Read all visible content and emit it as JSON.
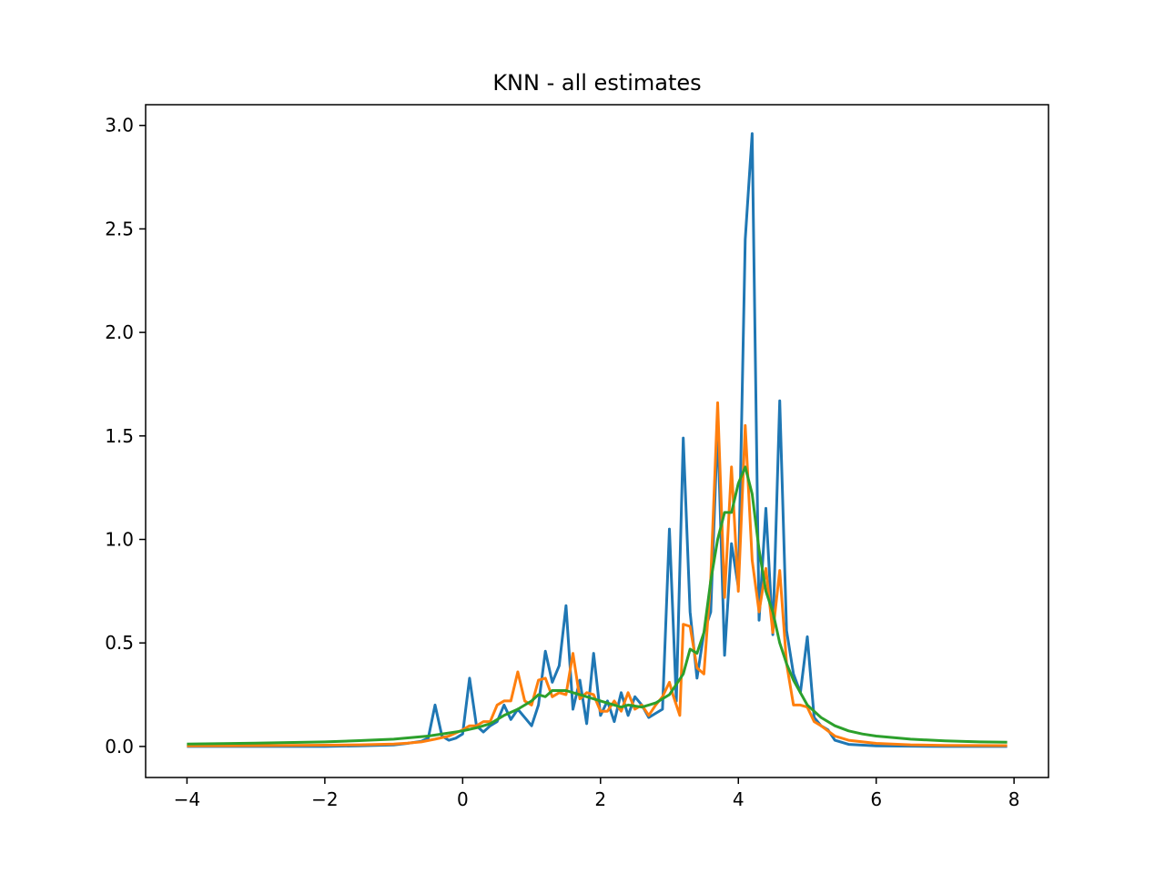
{
  "chart_data": {
    "type": "line",
    "title": "KNN - all estimates",
    "xlabel": "",
    "ylabel": "",
    "xlim": [
      -4.6,
      8.5
    ],
    "ylim": [
      -0.15,
      3.1
    ],
    "xticks": [
      -4,
      -2,
      0,
      2,
      4,
      6,
      8
    ],
    "xtick_labels": [
      "−4",
      "−2",
      "0",
      "2",
      "4",
      "6",
      "8"
    ],
    "yticks": [
      0.0,
      0.5,
      1.0,
      1.5,
      2.0,
      2.5,
      3.0
    ],
    "ytick_labels": [
      "0.0",
      "0.5",
      "1.0",
      "1.5",
      "2.0",
      "2.5",
      "3.0"
    ],
    "grid": false,
    "legend": "none",
    "series": [
      {
        "color": "#1f77b4",
        "stroke_width": 3,
        "points": [
          [
            -4.0,
            0.0
          ],
          [
            -3.0,
            0.0
          ],
          [
            -2.0,
            0.0
          ],
          [
            -1.5,
            0.003
          ],
          [
            -1.0,
            0.007
          ],
          [
            -0.8,
            0.015
          ],
          [
            -0.6,
            0.025
          ],
          [
            -0.5,
            0.04
          ],
          [
            -0.4,
            0.2
          ],
          [
            -0.3,
            0.05
          ],
          [
            -0.2,
            0.03
          ],
          [
            -0.1,
            0.04
          ],
          [
            0.0,
            0.06
          ],
          [
            0.1,
            0.33
          ],
          [
            0.2,
            0.1
          ],
          [
            0.3,
            0.07
          ],
          [
            0.4,
            0.1
          ],
          [
            0.5,
            0.12
          ],
          [
            0.6,
            0.2
          ],
          [
            0.7,
            0.13
          ],
          [
            0.8,
            0.18
          ],
          [
            0.9,
            0.14
          ],
          [
            1.0,
            0.1
          ],
          [
            1.1,
            0.2
          ],
          [
            1.2,
            0.46
          ],
          [
            1.3,
            0.31
          ],
          [
            1.4,
            0.39
          ],
          [
            1.5,
            0.68
          ],
          [
            1.6,
            0.18
          ],
          [
            1.7,
            0.32
          ],
          [
            1.8,
            0.11
          ],
          [
            1.9,
            0.45
          ],
          [
            2.0,
            0.15
          ],
          [
            2.1,
            0.22
          ],
          [
            2.2,
            0.12
          ],
          [
            2.3,
            0.26
          ],
          [
            2.4,
            0.15
          ],
          [
            2.5,
            0.24
          ],
          [
            2.6,
            0.2
          ],
          [
            2.7,
            0.14
          ],
          [
            2.8,
            0.16
          ],
          [
            2.9,
            0.18
          ],
          [
            3.0,
            1.05
          ],
          [
            3.1,
            0.22
          ],
          [
            3.2,
            1.49
          ],
          [
            3.3,
            0.65
          ],
          [
            3.4,
            0.33
          ],
          [
            3.5,
            0.55
          ],
          [
            3.6,
            0.65
          ],
          [
            3.7,
            1.55
          ],
          [
            3.8,
            0.44
          ],
          [
            3.9,
            0.98
          ],
          [
            4.0,
            0.77
          ],
          [
            4.1,
            2.45
          ],
          [
            4.2,
            2.96
          ],
          [
            4.3,
            0.61
          ],
          [
            4.4,
            1.15
          ],
          [
            4.5,
            0.54
          ],
          [
            4.6,
            1.67
          ],
          [
            4.7,
            0.56
          ],
          [
            4.8,
            0.35
          ],
          [
            4.9,
            0.26
          ],
          [
            5.0,
            0.53
          ],
          [
            5.1,
            0.14
          ],
          [
            5.2,
            0.1
          ],
          [
            5.3,
            0.08
          ],
          [
            5.4,
            0.03
          ],
          [
            5.6,
            0.01
          ],
          [
            6.0,
            0.003
          ],
          [
            7.0,
            0.0
          ],
          [
            7.9,
            0.0
          ]
        ]
      },
      {
        "color": "#ff7f0e",
        "stroke_width": 3,
        "points": [
          [
            -4.0,
            0.003
          ],
          [
            -3.0,
            0.004
          ],
          [
            -2.0,
            0.006
          ],
          [
            -1.5,
            0.008
          ],
          [
            -1.0,
            0.012
          ],
          [
            -0.8,
            0.016
          ],
          [
            -0.6,
            0.022
          ],
          [
            -0.4,
            0.035
          ],
          [
            -0.2,
            0.05
          ],
          [
            0.0,
            0.08
          ],
          [
            0.1,
            0.1
          ],
          [
            0.2,
            0.1
          ],
          [
            0.3,
            0.12
          ],
          [
            0.4,
            0.12
          ],
          [
            0.5,
            0.2
          ],
          [
            0.6,
            0.22
          ],
          [
            0.7,
            0.22
          ],
          [
            0.8,
            0.36
          ],
          [
            0.9,
            0.22
          ],
          [
            1.0,
            0.2
          ],
          [
            1.1,
            0.32
          ],
          [
            1.2,
            0.33
          ],
          [
            1.3,
            0.24
          ],
          [
            1.4,
            0.26
          ],
          [
            1.5,
            0.25
          ],
          [
            1.6,
            0.45
          ],
          [
            1.7,
            0.23
          ],
          [
            1.8,
            0.26
          ],
          [
            1.9,
            0.25
          ],
          [
            2.0,
            0.17
          ],
          [
            2.1,
            0.17
          ],
          [
            2.2,
            0.22
          ],
          [
            2.3,
            0.17
          ],
          [
            2.4,
            0.26
          ],
          [
            2.5,
            0.18
          ],
          [
            2.6,
            0.2
          ],
          [
            2.7,
            0.15
          ],
          [
            2.8,
            0.2
          ],
          [
            2.9,
            0.24
          ],
          [
            3.0,
            0.31
          ],
          [
            3.05,
            0.25
          ],
          [
            3.15,
            0.15
          ],
          [
            3.2,
            0.59
          ],
          [
            3.3,
            0.58
          ],
          [
            3.4,
            0.38
          ],
          [
            3.5,
            0.35
          ],
          [
            3.6,
            0.81
          ],
          [
            3.7,
            1.66
          ],
          [
            3.8,
            0.72
          ],
          [
            3.9,
            1.35
          ],
          [
            4.0,
            0.75
          ],
          [
            4.1,
            1.55
          ],
          [
            4.2,
            0.9
          ],
          [
            4.3,
            0.65
          ],
          [
            4.4,
            0.86
          ],
          [
            4.5,
            0.55
          ],
          [
            4.6,
            0.85
          ],
          [
            4.7,
            0.4
          ],
          [
            4.8,
            0.2
          ],
          [
            4.9,
            0.2
          ],
          [
            5.0,
            0.19
          ],
          [
            5.1,
            0.12
          ],
          [
            5.2,
            0.1
          ],
          [
            5.4,
            0.05
          ],
          [
            5.6,
            0.03
          ],
          [
            6.0,
            0.015
          ],
          [
            6.5,
            0.008
          ],
          [
            7.0,
            0.005
          ],
          [
            7.9,
            0.004
          ]
        ]
      },
      {
        "color": "#2ca02c",
        "stroke_width": 3,
        "points": [
          [
            -4.0,
            0.012
          ],
          [
            -3.0,
            0.016
          ],
          [
            -2.0,
            0.022
          ],
          [
            -1.5,
            0.028
          ],
          [
            -1.0,
            0.035
          ],
          [
            -0.5,
            0.05
          ],
          [
            0.0,
            0.075
          ],
          [
            0.2,
            0.09
          ],
          [
            0.4,
            0.11
          ],
          [
            0.6,
            0.15
          ],
          [
            0.8,
            0.18
          ],
          [
            1.0,
            0.22
          ],
          [
            1.1,
            0.25
          ],
          [
            1.2,
            0.24
          ],
          [
            1.3,
            0.27
          ],
          [
            1.4,
            0.27
          ],
          [
            1.5,
            0.27
          ],
          [
            1.6,
            0.26
          ],
          [
            1.7,
            0.25
          ],
          [
            1.8,
            0.24
          ],
          [
            2.0,
            0.22
          ],
          [
            2.2,
            0.2
          ],
          [
            2.3,
            0.19
          ],
          [
            2.4,
            0.2
          ],
          [
            2.6,
            0.19
          ],
          [
            2.7,
            0.2
          ],
          [
            2.8,
            0.21
          ],
          [
            3.0,
            0.25
          ],
          [
            3.1,
            0.3
          ],
          [
            3.2,
            0.35
          ],
          [
            3.3,
            0.47
          ],
          [
            3.4,
            0.45
          ],
          [
            3.5,
            0.55
          ],
          [
            3.6,
            0.8
          ],
          [
            3.7,
            1.0
          ],
          [
            3.8,
            1.13
          ],
          [
            3.9,
            1.13
          ],
          [
            4.0,
            1.27
          ],
          [
            4.1,
            1.35
          ],
          [
            4.2,
            1.22
          ],
          [
            4.3,
            0.95
          ],
          [
            4.4,
            0.75
          ],
          [
            4.5,
            0.65
          ],
          [
            4.6,
            0.5
          ],
          [
            4.7,
            0.4
          ],
          [
            4.8,
            0.32
          ],
          [
            4.9,
            0.26
          ],
          [
            5.0,
            0.2
          ],
          [
            5.2,
            0.14
          ],
          [
            5.4,
            0.1
          ],
          [
            5.6,
            0.075
          ],
          [
            5.8,
            0.06
          ],
          [
            6.0,
            0.05
          ],
          [
            6.5,
            0.035
          ],
          [
            7.0,
            0.027
          ],
          [
            7.5,
            0.022
          ],
          [
            7.9,
            0.02
          ]
        ]
      }
    ]
  }
}
